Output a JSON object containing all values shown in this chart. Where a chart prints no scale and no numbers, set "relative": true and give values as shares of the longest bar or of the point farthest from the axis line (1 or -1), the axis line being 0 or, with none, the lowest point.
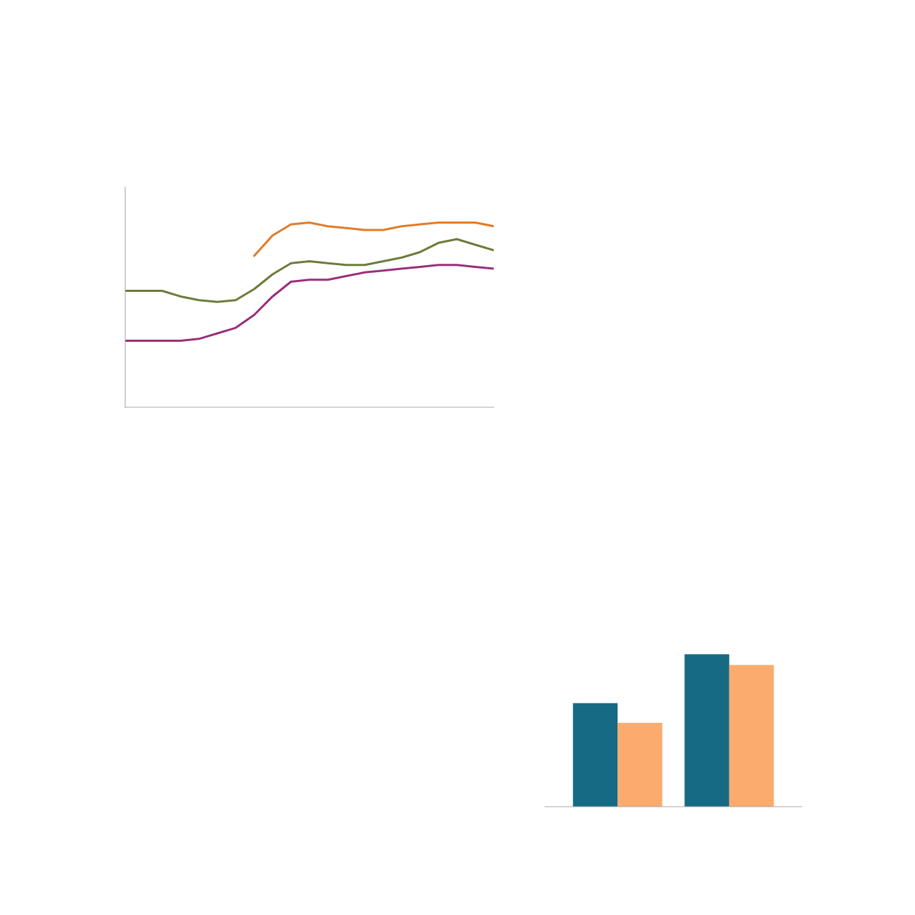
{
  "chart_data": [
    {
      "type": "line",
      "relative": true,
      "categories": [
        null,
        null,
        null,
        null,
        null,
        null,
        null,
        null,
        null,
        null,
        null,
        null,
        null,
        null,
        null,
        null,
        null,
        null,
        null,
        null,
        null
      ],
      "series": [
        {
          "color": "#e07b28",
          "values": [
            null,
            null,
            null,
            null,
            null,
            null,
            null,
            0.82,
            0.93,
            0.99,
            1.0,
            0.98,
            0.97,
            0.96,
            0.96,
            0.98,
            0.99,
            1.0,
            1.0,
            1.0,
            0.98
          ]
        },
        {
          "color": "#6b7b3a",
          "values": [
            0.63,
            0.63,
            0.63,
            0.6,
            0.58,
            0.57,
            0.58,
            0.64,
            0.72,
            0.78,
            0.79,
            0.78,
            0.77,
            0.77,
            0.79,
            0.81,
            0.84,
            0.89,
            0.91,
            0.88,
            0.85
          ]
        },
        {
          "color": "#9b2d7a",
          "values": [
            0.36,
            0.36,
            0.36,
            0.36,
            0.37,
            0.4,
            0.43,
            0.5,
            0.6,
            0.68,
            0.69,
            0.69,
            0.71,
            0.73,
            0.74,
            0.75,
            0.76,
            0.77,
            0.77,
            0.76,
            0.75
          ]
        }
      ]
    },
    {
      "type": "bar",
      "relative": true,
      "categories": [
        null,
        null
      ],
      "series": [
        {
          "color": "#166a84",
          "values": [
            0.68,
            1.0
          ]
        },
        {
          "color": "#fbab6e",
          "values": [
            0.55,
            0.93
          ]
        }
      ]
    }
  ]
}
